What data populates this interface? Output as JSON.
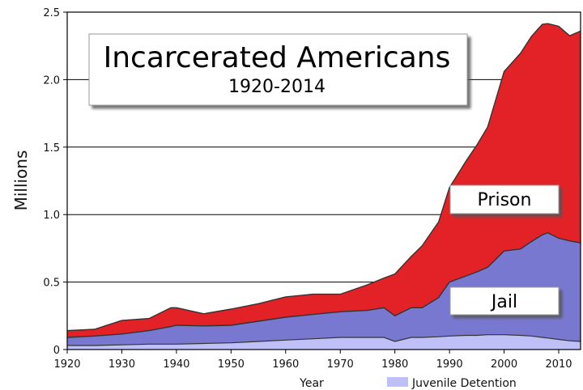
{
  "chart_data": {
    "type": "area",
    "title": "Incarcerated Americans",
    "subtitle": "1920-2014",
    "xlabel": "Year",
    "ylabel": "Millions",
    "xlim": [
      1920,
      2014
    ],
    "ylim": [
      0,
      2.5
    ],
    "x_ticks": [
      1920,
      1930,
      1940,
      1950,
      1960,
      1970,
      1980,
      1990,
      2000,
      2010
    ],
    "y_ticks": [
      "0",
      "0.5",
      "1.0",
      "1.5",
      "2.0",
      "2.5"
    ],
    "legend": "Juvenile Detention",
    "labels": {
      "prison": "Prison",
      "jail": "Jail"
    },
    "colors": {
      "juvenile": "#c0c0f8",
      "jail": "#7878d0",
      "prison": "#e32227",
      "grid": "#000000"
    },
    "x": [
      1920,
      1925,
      1930,
      1935,
      1939,
      1940,
      1945,
      1950,
      1955,
      1960,
      1965,
      1970,
      1975,
      1978,
      1980,
      1983,
      1985,
      1988,
      1990,
      1993,
      1995,
      1997,
      2000,
      2003,
      2005,
      2006,
      2007,
      2008,
      2010,
      2012,
      2014
    ],
    "series": [
      {
        "name": "Juvenile Detention",
        "values": [
          0.03,
          0.03,
          0.035,
          0.04,
          0.04,
          0.04,
          0.045,
          0.05,
          0.06,
          0.07,
          0.08,
          0.09,
          0.09,
          0.09,
          0.06,
          0.09,
          0.09,
          0.095,
          0.1,
          0.105,
          0.105,
          0.11,
          0.11,
          0.105,
          0.1,
          0.095,
          0.09,
          0.085,
          0.075,
          0.065,
          0.06
        ]
      },
      {
        "name": "Jail",
        "values": [
          0.06,
          0.07,
          0.08,
          0.1,
          0.13,
          0.14,
          0.13,
          0.13,
          0.15,
          0.17,
          0.18,
          0.19,
          0.2,
          0.22,
          0.19,
          0.22,
          0.22,
          0.29,
          0.4,
          0.44,
          0.47,
          0.5,
          0.62,
          0.64,
          0.7,
          0.73,
          0.76,
          0.78,
          0.75,
          0.74,
          0.73
        ]
      },
      {
        "name": "Prison",
        "values": [
          0.05,
          0.05,
          0.1,
          0.09,
          0.14,
          0.13,
          0.09,
          0.12,
          0.13,
          0.15,
          0.15,
          0.13,
          0.19,
          0.22,
          0.31,
          0.38,
          0.46,
          0.56,
          0.7,
          0.85,
          0.94,
          1.04,
          1.33,
          1.45,
          1.52,
          1.54,
          1.56,
          1.55,
          1.57,
          1.52,
          1.57
        ]
      }
    ]
  }
}
